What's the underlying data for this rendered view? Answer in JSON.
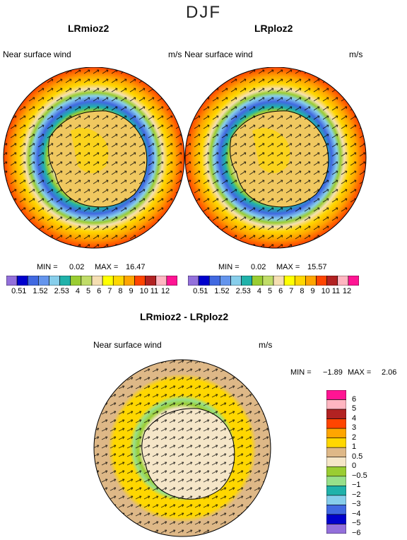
{
  "season": "DJF",
  "panels": [
    {
      "title": "LRmioz2",
      "left_label": "Near surface wind",
      "right_label": "m/s",
      "min_label": "MIN =",
      "min_value": "0.02",
      "max_label": "MAX =",
      "max_value": "16.47"
    },
    {
      "title": "LRploz2",
      "left_label": "Near surface wind",
      "right_label": "m/s",
      "min_label": "MIN =",
      "min_value": "0.02",
      "max_label": "MAX =",
      "max_value": "15.57"
    }
  ],
  "diff": {
    "title": "LRmioz2 - LRploz2",
    "left_label": "Near surface wind",
    "right_label": "m/s",
    "min_label": "MIN =",
    "min_value": "−1.89",
    "max_label": "MAX =",
    "max_value": "2.06"
  },
  "colorbar_labels": [
    "0.5",
    "1",
    "1.5",
    "2",
    "2.5",
    "3",
    "4",
    "5",
    "6",
    "7",
    "8",
    "9",
    "10",
    "11",
    "12"
  ],
  "colorbar_colors": [
    "#9370db",
    "#0000cd",
    "#4169e1",
    "#6495ed",
    "#87ceeb",
    "#20b2aa",
    "#9acd32",
    "#c0dc68",
    "#f5deb3",
    "#ffff00",
    "#ffd700",
    "#ffa500",
    "#ff4500",
    "#b22222",
    "#ffb6c1",
    "#ff1493"
  ],
  "diff_colorbar_labels": [
    "6",
    "5",
    "4",
    "3",
    "2",
    "1",
    "0.5",
    "0",
    "−0.5",
    "−1",
    "−2",
    "−3",
    "−4",
    "−5",
    "−6"
  ],
  "diff_colorbar_colors": [
    "#ff1493",
    "#ffb6c1",
    "#b22222",
    "#ff4500",
    "#ffa500",
    "#ffd700",
    "#deb887",
    "#f5e6c8",
    "#9acd32",
    "#98e08a",
    "#20b2aa",
    "#87ceeb",
    "#4169e1",
    "#0000cd",
    "#9370db"
  ]
}
